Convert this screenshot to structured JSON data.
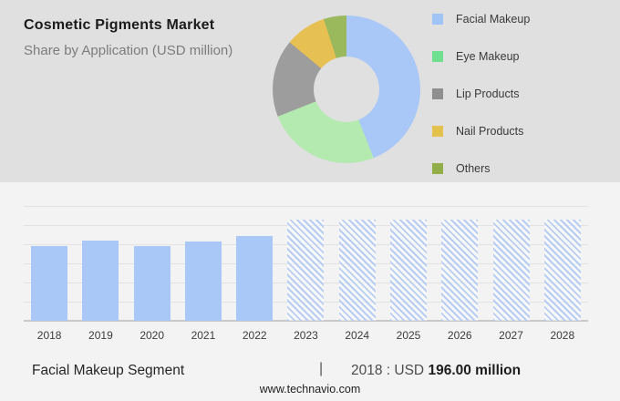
{
  "header": {
    "title": "Cosmetic Pigments Market",
    "subtitle": "Share by Application (USD million)"
  },
  "legend": {
    "items": [
      {
        "label": "Facial Makeup",
        "color": "#9fc3f7"
      },
      {
        "label": "Eye Makeup",
        "color": "#6ee08f"
      },
      {
        "label": "Lip Products",
        "color": "#8f8f8f"
      },
      {
        "label": "Nail Products",
        "color": "#e2c24d"
      },
      {
        "label": "Others",
        "color": "#93ae49"
      }
    ]
  },
  "chart_data": [
    {
      "type": "pie",
      "donut": true,
      "title": "Cosmetic Pigments Market — Share by Application (USD million)",
      "labels": [
        "Facial Makeup",
        "Eye Makeup",
        "Lip Products",
        "Nail Products",
        "Others"
      ],
      "values": [
        44,
        25,
        17,
        9,
        5
      ],
      "unit": "percent, estimated from arc angles",
      "colors": [
        "#a9c7f7",
        "#b4e9b0",
        "#9d9d9d",
        "#e6c052",
        "#9ab95c"
      ],
      "start_angle_deg": 0,
      "legend_position": "right",
      "hole_ratio": 0.44
    },
    {
      "type": "bar",
      "categories": [
        "2018",
        "2019",
        "2020",
        "2021",
        "2022",
        "2023",
        "2024",
        "2025",
        "2026",
        "2027",
        "2028"
      ],
      "series": [
        {
          "name": "Facial Makeup (USD million)",
          "values": [
            196,
            209,
            195,
            208,
            221,
            265,
            265,
            265,
            265,
            265,
            265
          ]
        }
      ],
      "known_value": {
        "year": "2018",
        "value": 196.0,
        "unit": "USD million"
      },
      "forecast_years": [
        "2023",
        "2024",
        "2025",
        "2026",
        "2027",
        "2028"
      ],
      "bar_color": "#a9c7f7",
      "hatch_color": "#b7cdf2",
      "ylim": [
        0,
        300
      ],
      "gridline_step": 50,
      "grid": true,
      "y_axis_labels": false,
      "xlabel": "",
      "ylabel": ""
    }
  ],
  "footer": {
    "segment_label": "Facial Makeup Segment",
    "separator": "|",
    "stat_prefix": "2018 : USD",
    "stat_value": "196.00 million",
    "website": "www.technavio.com"
  }
}
